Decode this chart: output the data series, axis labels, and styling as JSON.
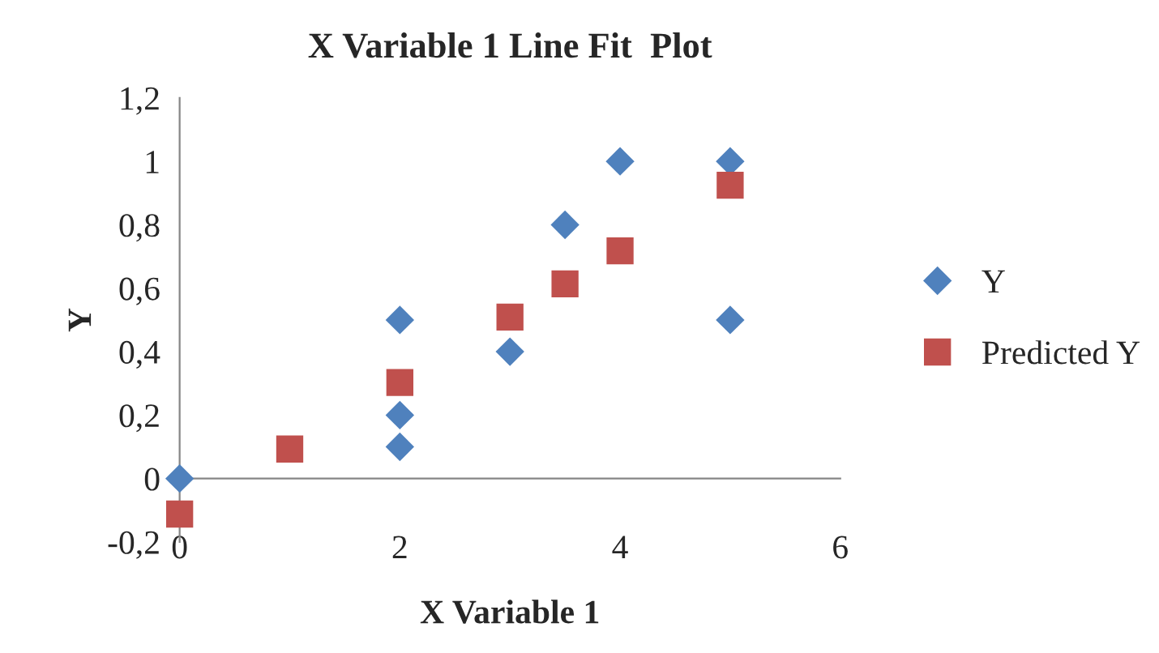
{
  "chart_data": {
    "type": "scatter",
    "title": "X Variable 1 Line Fit  Plot",
    "xlabel": "X Variable 1",
    "ylabel": "Y",
    "series": [
      {
        "name": "Y",
        "color": "#4f81bd",
        "marker": "diamond",
        "x": [
          0,
          2,
          2,
          2,
          3,
          3.5,
          4,
          5,
          5
        ],
        "values": [
          0,
          0.5,
          0.2,
          0.1,
          0.4,
          0.8,
          1,
          1,
          0.5
        ]
      },
      {
        "name": "Predicted Y",
        "color": "#c0504d",
        "marker": "square",
        "x": [
          0,
          1,
          2,
          3,
          3.5,
          4,
          5
        ],
        "values": [
          -0.112,
          0.093,
          0.303,
          0.509,
          0.614,
          0.718,
          0.925
        ]
      }
    ],
    "xlim": [
      0,
      6
    ],
    "xticks": [
      0,
      2,
      4,
      6
    ],
    "ylim": [
      -0.2,
      1.2
    ],
    "yticks": [
      {
        "value": -0.2,
        "label": "-0,2"
      },
      0,
      {
        "value": 0.2,
        "label": "0,2"
      },
      {
        "value": 0.4,
        "label": "0,4"
      },
      {
        "value": 0.6,
        "label": "0,6"
      },
      {
        "value": 0.8,
        "label": "0,8"
      },
      1,
      {
        "value": 1.2,
        "label": "1,2"
      }
    ],
    "grid": false,
    "legend": "right"
  }
}
